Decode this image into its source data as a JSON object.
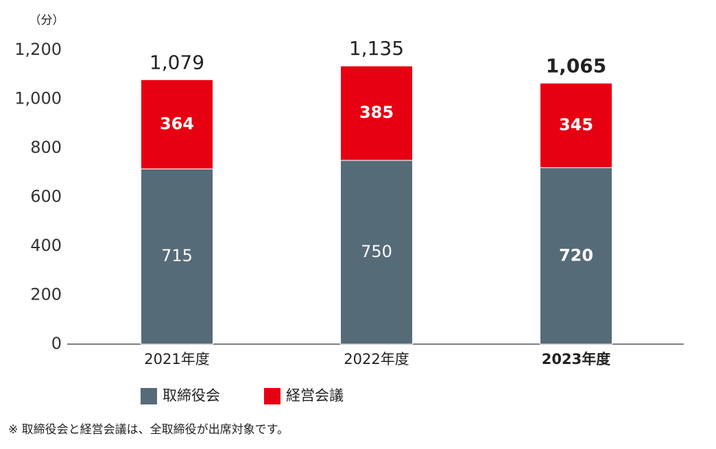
{
  "chart_data": {
    "type": "stacked_bar",
    "unit_label": "（分）",
    "categories": [
      "2021年度",
      "2022年度",
      "2023年度"
    ],
    "series": [
      {
        "name": "取締役会",
        "color": "#566b78",
        "values": [
          715,
          750,
          720
        ]
      },
      {
        "name": "経営会議",
        "color": "#e60012",
        "values": [
          364,
          385,
          345
        ]
      }
    ],
    "totals": [
      1079,
      1135,
      1065
    ],
    "total_labels": [
      "1,079",
      "1,135",
      "1,065"
    ],
    "ylim": [
      0,
      1200
    ],
    "yticks": [
      0,
      200,
      400,
      600,
      800,
      {
        "value": 1000,
        "label": "1,000"
      },
      {
        "value": 1200,
        "label": "1,200"
      }
    ],
    "footnote": "※ 取締役会と経営会議は、全取締役が出席対象です。"
  }
}
